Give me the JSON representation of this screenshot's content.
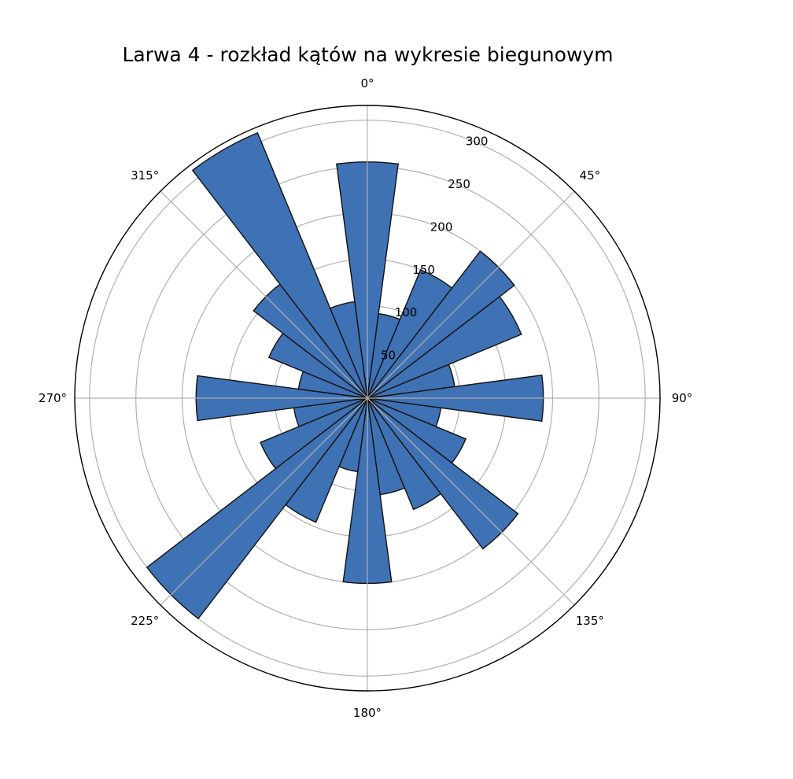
{
  "chart_data": {
    "type": "polar-bar",
    "title": "Larwa 4 - rozkład kątów na wykresie biegunowym",
    "theta_zero": "N",
    "theta_direction": "clockwise",
    "bin_width_deg": 15,
    "bin_centers_deg": [
      0,
      15,
      30,
      45,
      60,
      75,
      90,
      105,
      120,
      135,
      150,
      165,
      180,
      195,
      210,
      225,
      240,
      255,
      270,
      285,
      300,
      315,
      330,
      345
    ],
    "values": [
      255,
      92,
      150,
      200,
      180,
      95,
      190,
      80,
      115,
      205,
      130,
      105,
      200,
      80,
      145,
      300,
      125,
      80,
      185,
      75,
      115,
      155,
      310,
      105
    ],
    "rlim": [
      0,
      316
    ],
    "r_ticks": [
      "50",
      "100",
      "150",
      "200",
      "250",
      "300"
    ],
    "r_tick_values": [
      50,
      100,
      150,
      200,
      250,
      300
    ],
    "theta_ticks": [
      "0°",
      "45°",
      "90°",
      "135°",
      "180°",
      "225°",
      "270°",
      "315°"
    ],
    "theta_tick_values": [
      0,
      45,
      90,
      135,
      180,
      225,
      270,
      315
    ],
    "grid": true,
    "colors": {
      "bar_fill": "#3e72b4",
      "bar_edge": "#111111",
      "grid": "#b0b0b0",
      "frame": "#000000"
    }
  }
}
